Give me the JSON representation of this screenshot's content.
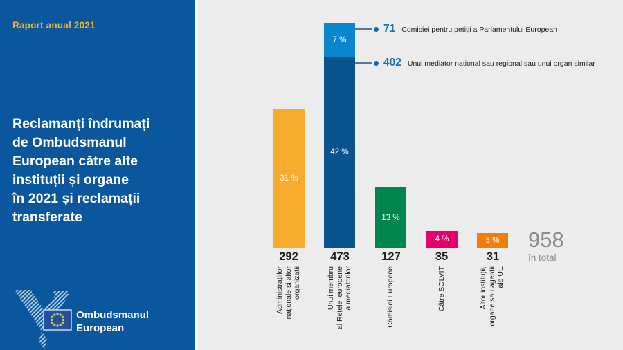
{
  "sidebar": {
    "report_label": "Raport anual 2021",
    "title": "Reclamanți îndrumați\nde Ombudsmanul\nEuropean către alte\ninstituții și organe\nîn 2021 și reclamații\ntransferate",
    "logo_text": "Ombudsmanul\nEuropean"
  },
  "colors": {
    "sidebar_blue": "#0A579E",
    "canvas_gray": "#ECECEC",
    "accent_gold": "#EFB423",
    "callout_number_blue": "#1173BB",
    "total_gray": "#8A8A8A"
  },
  "chart_data": {
    "type": "bar",
    "title": "Reclamanți îndrumați de Ombudsmanul European către alte instituții și organe în 2021 și reclamații transferate",
    "total": 958,
    "total_label": "în total",
    "ylim": [
      0,
      473
    ],
    "grid": false,
    "legend": false,
    "bars": [
      {
        "value": 292,
        "percent": "31 %",
        "color": "#F8AC2E",
        "label": "Administrațiilor\nnaționale și altor\norganizații"
      },
      {
        "value": 473,
        "label": "Unui membru\nal Rețelei europene\na mediatorilor",
        "segments": [
          {
            "value": 71,
            "percent": "7 %",
            "color": "#0887CC",
            "callout_text": "Comisiei pentru petiții a Parlamentului European"
          },
          {
            "value": 402,
            "percent": "42 %",
            "color": "#06538E",
            "callout_text": "Unui mediator național sau regional sau unui organ similar"
          }
        ]
      },
      {
        "value": 127,
        "percent": "13 %",
        "color": "#00854C",
        "label": "Comisiei Europene"
      },
      {
        "value": 35,
        "percent": "4 %",
        "color": "#E5006D",
        "label": "Către SOLVIT"
      },
      {
        "value": 31,
        "percent": "3 %",
        "color": "#EF7D0C",
        "label": "Altor instituții,\norgane sau agenții\nale UE"
      }
    ]
  }
}
